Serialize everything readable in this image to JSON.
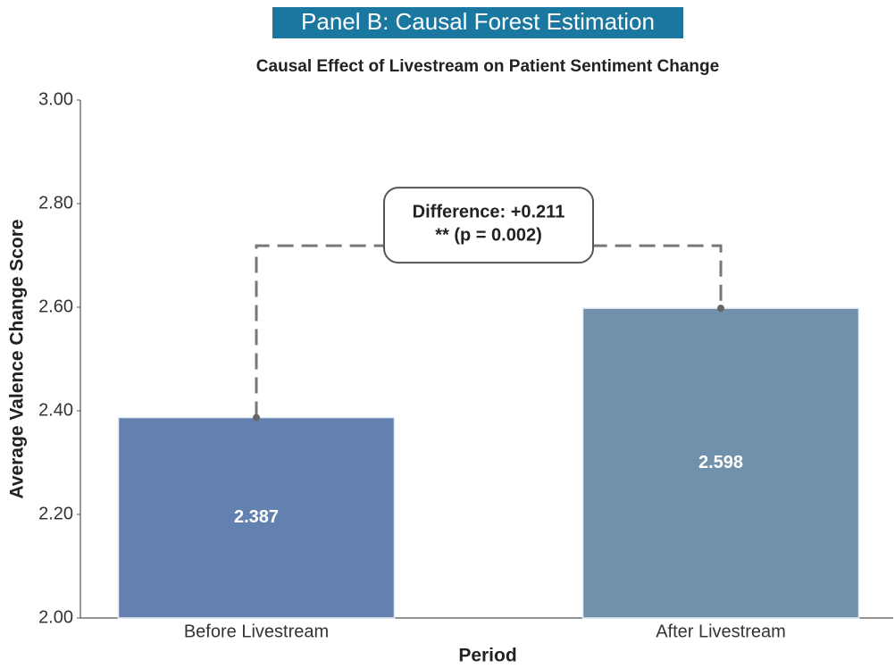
{
  "chart_data": {
    "type": "bar",
    "panel_title": "Panel B: Causal Forest Estimation",
    "title": "Causal Effect of Livestream on Patient Sentiment Change",
    "x_label": "Period",
    "y_label": "Average Valence Change Score",
    "categories": [
      "Before Livestream",
      "After Livestream"
    ],
    "values": [
      2.387,
      2.598
    ],
    "colors": [
      "#6281b0",
      "#7090ab"
    ],
    "ylim": [
      2.0,
      3.0
    ],
    "yticks": [
      {
        "value": 2.0,
        "label": "2.00"
      },
      {
        "value": 2.2,
        "label": "2.20"
      },
      {
        "value": 2.4,
        "label": "2.40"
      },
      {
        "value": 2.6,
        "label": "2.60"
      },
      {
        "value": 2.8,
        "label": "2.80"
      },
      {
        "value": 3.0,
        "label": "3.00"
      }
    ],
    "annotation": [
      "Difference: +0.211",
      "** (p = 0.002)"
    ],
    "grid": false
  }
}
